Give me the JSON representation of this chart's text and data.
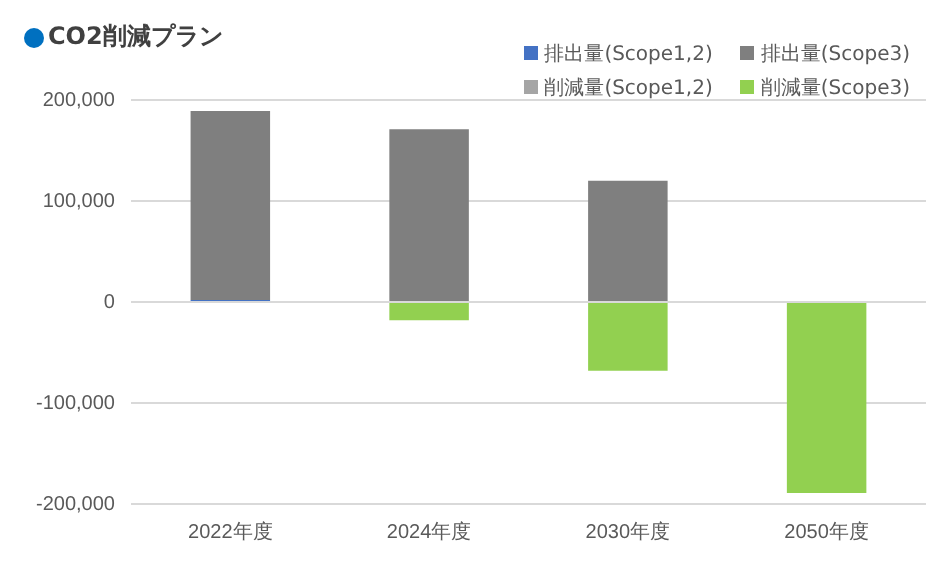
{
  "chart_data": {
    "type": "bar",
    "title": "CO2削減プラン",
    "stacked": true,
    "legend": "top right",
    "grid": "y",
    "categories": [
      "2022年度",
      "2024年度",
      "2030年度",
      "2050年度"
    ],
    "series": [
      {
        "name": "排出量(Scope1,2)",
        "color": "#4472c4",
        "values": [
          2000,
          null,
          null,
          null
        ]
      },
      {
        "name": "排出量(Scope3)",
        "color": "#7f7f7f",
        "values": [
          187000,
          171000,
          120000,
          null
        ]
      },
      {
        "name": "削減量(Scope1,2)",
        "color": "#a5a5a5",
        "values": [
          null,
          null,
          null,
          null
        ]
      },
      {
        "name": "削減量(Scope3)",
        "color": "#92d050",
        "values": [
          null,
          -18000,
          -68000,
          -189000
        ]
      }
    ],
    "ylim": [
      -200000,
      200000
    ],
    "yticks": [
      {
        "value": -200000,
        "label": "-200,000"
      },
      {
        "value": -100000,
        "label": "-100,000"
      },
      {
        "value": 0,
        "label": "0"
      },
      {
        "value": 100000,
        "label": "100,000"
      },
      {
        "value": 200000,
        "label": "200,000"
      }
    ]
  }
}
